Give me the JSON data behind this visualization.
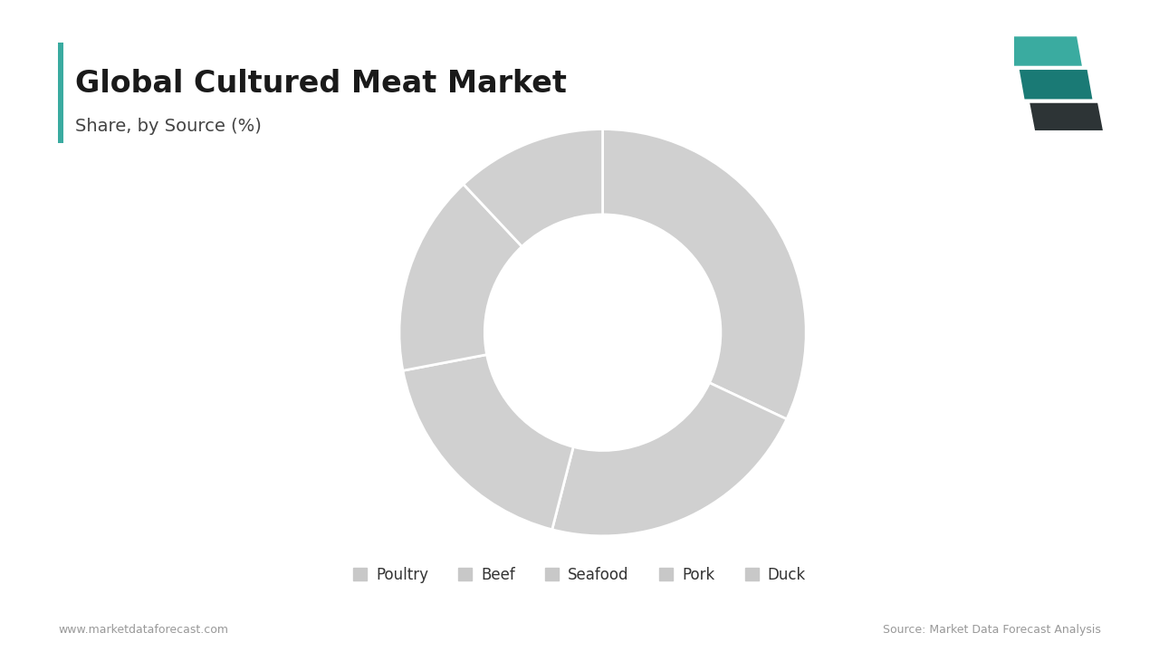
{
  "title": "Global Cultured Meat Market",
  "subtitle": "Share, by Source (%)",
  "title_color": "#1a1a1a",
  "subtitle_color": "#444444",
  "background_color": "#ffffff",
  "accent_bar_color": "#3aaba0",
  "segments": [
    "Poultry",
    "Beef",
    "Seafood",
    "Pork",
    "Duck"
  ],
  "values": [
    32,
    22,
    18,
    16,
    12
  ],
  "slice_colors": [
    "#d0d0d0",
    "#d0d0d0",
    "#d0d0d0",
    "#d0d0d0",
    "#d0d0d0"
  ],
  "wedge_edge_color": "#ffffff",
  "wedge_linewidth": 2.0,
  "donut_width": 0.42,
  "legend_marker_color": "#c8c8c8",
  "footer_left": "www.marketdataforecast.com",
  "footer_right": "Source: Market Data Forecast Analysis",
  "footer_color": "#999999",
  "logo_dark": "#2d3436",
  "logo_mid": "#1a7a75",
  "logo_light": "#3aaba0"
}
